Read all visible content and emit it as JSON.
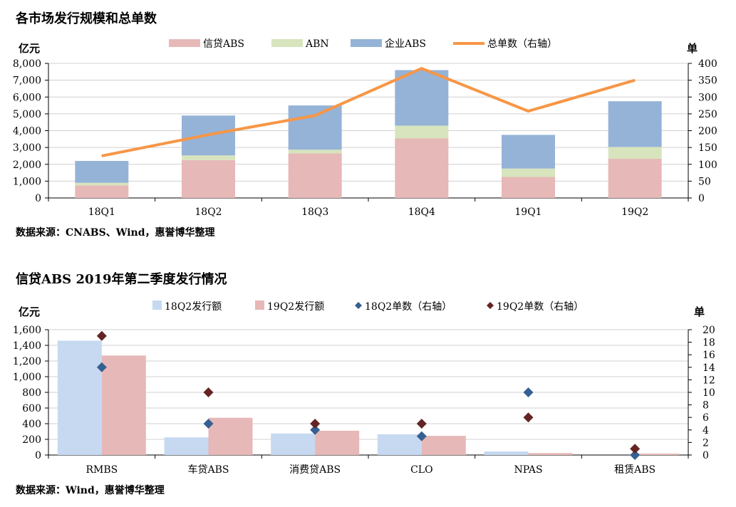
{
  "colors": {
    "credit_abs": "#e6b8b7",
    "abn": "#d7e4bd",
    "enterprise_abs": "#95b3d7",
    "total": "#f79646",
    "q18_bar": "#c6d9f1",
    "q19_bar": "#e6b8b7",
    "q18_marker": "#366092",
    "q19_marker": "#632523",
    "grid": "#d0d0d0"
  },
  "chart1": {
    "title": "各市场发行规模和总单数",
    "source": "数据来源：CNABS、Wind，惠誉博华整理",
    "chart_data": {
      "type": "bar",
      "stacked": true,
      "categories": [
        "18Q1",
        "18Q2",
        "18Q3",
        "18Q4",
        "19Q1",
        "19Q2"
      ],
      "series": [
        {
          "name": "信贷ABS",
          "values": [
            750,
            2250,
            2650,
            3550,
            1250,
            2330
          ]
        },
        {
          "name": "ABN",
          "values": [
            150,
            280,
            220,
            750,
            500,
            700
          ]
        },
        {
          "name": "企业ABS",
          "values": [
            1300,
            2370,
            2630,
            3300,
            2000,
            2720
          ]
        },
        {
          "name": "总单数（右轴）",
          "type": "line",
          "axis": "right",
          "values": [
            125,
            188,
            245,
            385,
            258,
            350
          ]
        }
      ],
      "ylabel": "亿元",
      "y2label": "单",
      "ylim": [
        0,
        8000
      ],
      "yticks": [
        0,
        1000,
        2000,
        3000,
        4000,
        5000,
        6000,
        7000,
        8000
      ],
      "ytick_labels": [
        "0",
        "1,000",
        "2,000",
        "3,000",
        "4,000",
        "5,000",
        "6,000",
        "7,000",
        "8,000"
      ],
      "y2lim": [
        0,
        400
      ],
      "y2ticks": [
        0,
        50,
        100,
        150,
        200,
        250,
        300,
        350,
        400
      ],
      "y2tick_labels": [
        "0",
        "50",
        "100",
        "150",
        "200",
        "250",
        "300",
        "350",
        "400"
      ],
      "grid": true,
      "legend": "top"
    }
  },
  "chart2": {
    "title": "信贷ABS 2019年第二季度发行情况",
    "source": "数据来源：Wind，惠誉博华整理",
    "chart_data": {
      "type": "bar",
      "categories": [
        "RMBS",
        "车贷ABS",
        "消费贷ABS",
        "CLO",
        "NPAS",
        "租赁ABS"
      ],
      "series": [
        {
          "name": "18Q2发行额",
          "values": [
            1460,
            225,
            275,
            265,
            45,
            0
          ]
        },
        {
          "name": "19Q2发行额",
          "values": [
            1270,
            475,
            310,
            245,
            25,
            18
          ]
        },
        {
          "name": "18Q2单数（右轴）",
          "type": "scatter",
          "axis": "right",
          "values": [
            14,
            5,
            4,
            3,
            10,
            0
          ]
        },
        {
          "name": "19Q2单数（右轴）",
          "type": "scatter",
          "axis": "right",
          "values": [
            19,
            10,
            5,
            5,
            6,
            1
          ]
        }
      ],
      "ylabel": "亿元",
      "y2label": "单",
      "ylim": [
        0,
        1600
      ],
      "yticks": [
        0,
        200,
        400,
        600,
        800,
        1000,
        1200,
        1400,
        1600
      ],
      "ytick_labels": [
        "0",
        "200",
        "400",
        "600",
        "800",
        "1,000",
        "1,200",
        "1,400",
        "1,600"
      ],
      "y2lim": [
        0,
        20
      ],
      "y2ticks": [
        0,
        2,
        4,
        6,
        8,
        10,
        12,
        14,
        16,
        18,
        20
      ],
      "y2tick_labels": [
        "0",
        "2",
        "4",
        "6",
        "8",
        "10",
        "12",
        "14",
        "16",
        "18",
        "20"
      ],
      "grid": true,
      "legend": "top"
    }
  }
}
